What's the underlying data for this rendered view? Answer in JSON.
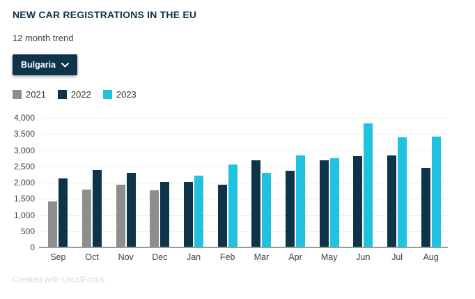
{
  "header": {
    "title": "NEW CAR REGISTRATIONS IN THE EU",
    "subtitle": "12 month trend"
  },
  "country_selector": {
    "label": "Bulgaria",
    "icon": "chevron-down"
  },
  "chart_data": {
    "type": "bar",
    "categories": [
      "Sep",
      "Oct",
      "Nov",
      "Dec",
      "Jan",
      "Feb",
      "Mar",
      "Apr",
      "May",
      "Jun",
      "Jul",
      "Aug"
    ],
    "series": [
      {
        "name": "2021",
        "color": "#8e8e8e",
        "values": [
          1430,
          1780,
          1930,
          1760,
          null,
          null,
          null,
          null,
          null,
          null,
          null,
          null
        ]
      },
      {
        "name": "2022",
        "color": "#0e3449",
        "values": [
          2120,
          2390,
          2300,
          2020,
          2030,
          1930,
          2690,
          2360,
          2690,
          2820,
          2840,
          2460
        ]
      },
      {
        "name": "2023",
        "color": "#21c2e0",
        "values": [
          null,
          null,
          null,
          null,
          2220,
          2560,
          2300,
          2840,
          2760,
          3820,
          3390,
          3430
        ]
      }
    ],
    "ylim": [
      0,
      4000
    ],
    "ytick_step": 500,
    "ytick_labels": [
      "0",
      "500",
      "1,000",
      "1,500",
      "2,000",
      "2,500",
      "3,000",
      "3,500",
      "4,000"
    ],
    "grid": true,
    "legend_position": "top-left",
    "xlabel": "",
    "ylabel": ""
  },
  "footer": {
    "credit": "Created with LocalFocus"
  }
}
